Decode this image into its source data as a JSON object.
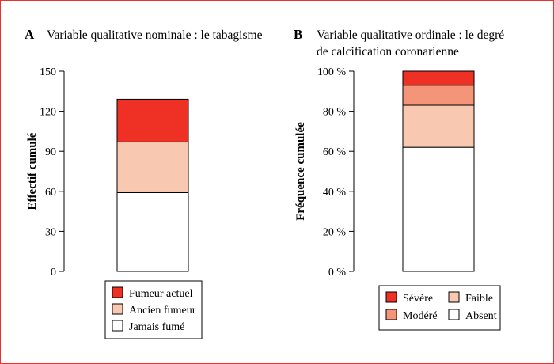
{
  "chart_data": [
    {
      "type": "bar",
      "stacked": true,
      "panel_letter": "A",
      "title": "Variable qualitative nominale : le tabagisme",
      "title_lines": [
        "Variable qualitative nominale : le tabagisme"
      ],
      "xlabel": "",
      "ylabel": "Effectif cumulé",
      "ylim": [
        0,
        150
      ],
      "yticks": [
        0,
        30,
        60,
        90,
        120,
        150
      ],
      "ytick_labels": [
        "0",
        "30",
        "60",
        "90",
        "120",
        "150"
      ],
      "grid": false,
      "legend_placement": "bottom",
      "series": [
        {
          "name": "Jamais fumé",
          "values": [
            59
          ],
          "color": "#ffffff"
        },
        {
          "name": "Ancien fumeur",
          "values": [
            38
          ],
          "color": "#f9c8b0"
        },
        {
          "name": "Fumeur actuel",
          "values": [
            32
          ],
          "color": "#ee3124"
        }
      ],
      "legend_order": [
        "Fumeur actuel",
        "Ancien fumeur",
        "Jamais fumé"
      ]
    },
    {
      "type": "bar",
      "stacked": true,
      "panel_letter": "B",
      "title": "Variable qualitative ordinale : le degré de calcification coronarienne",
      "title_lines": [
        "Variable qualitative ordinale : le degré",
        "de calcification coronarienne"
      ],
      "xlabel": "",
      "ylabel": "Fréquence cumulée",
      "ylim": [
        0,
        100
      ],
      "yticks": [
        0,
        20,
        40,
        60,
        80,
        100
      ],
      "ytick_labels": [
        "0 %",
        "20 %",
        "40 %",
        "60 %",
        "80 %",
        "100 %"
      ],
      "grid": false,
      "legend_placement": "bottom",
      "series": [
        {
          "name": "Absent",
          "values": [
            62
          ],
          "color": "#ffffff"
        },
        {
          "name": "Faible",
          "values": [
            21
          ],
          "color": "#f9c8b0"
        },
        {
          "name": "Modéré",
          "values": [
            10
          ],
          "color": "#f4957a"
        },
        {
          "name": "Sévère",
          "values": [
            7
          ],
          "color": "#ee3124"
        }
      ],
      "legend_order": [
        "Sévère",
        "Faible",
        "Modéré",
        "Absent"
      ]
    }
  ]
}
